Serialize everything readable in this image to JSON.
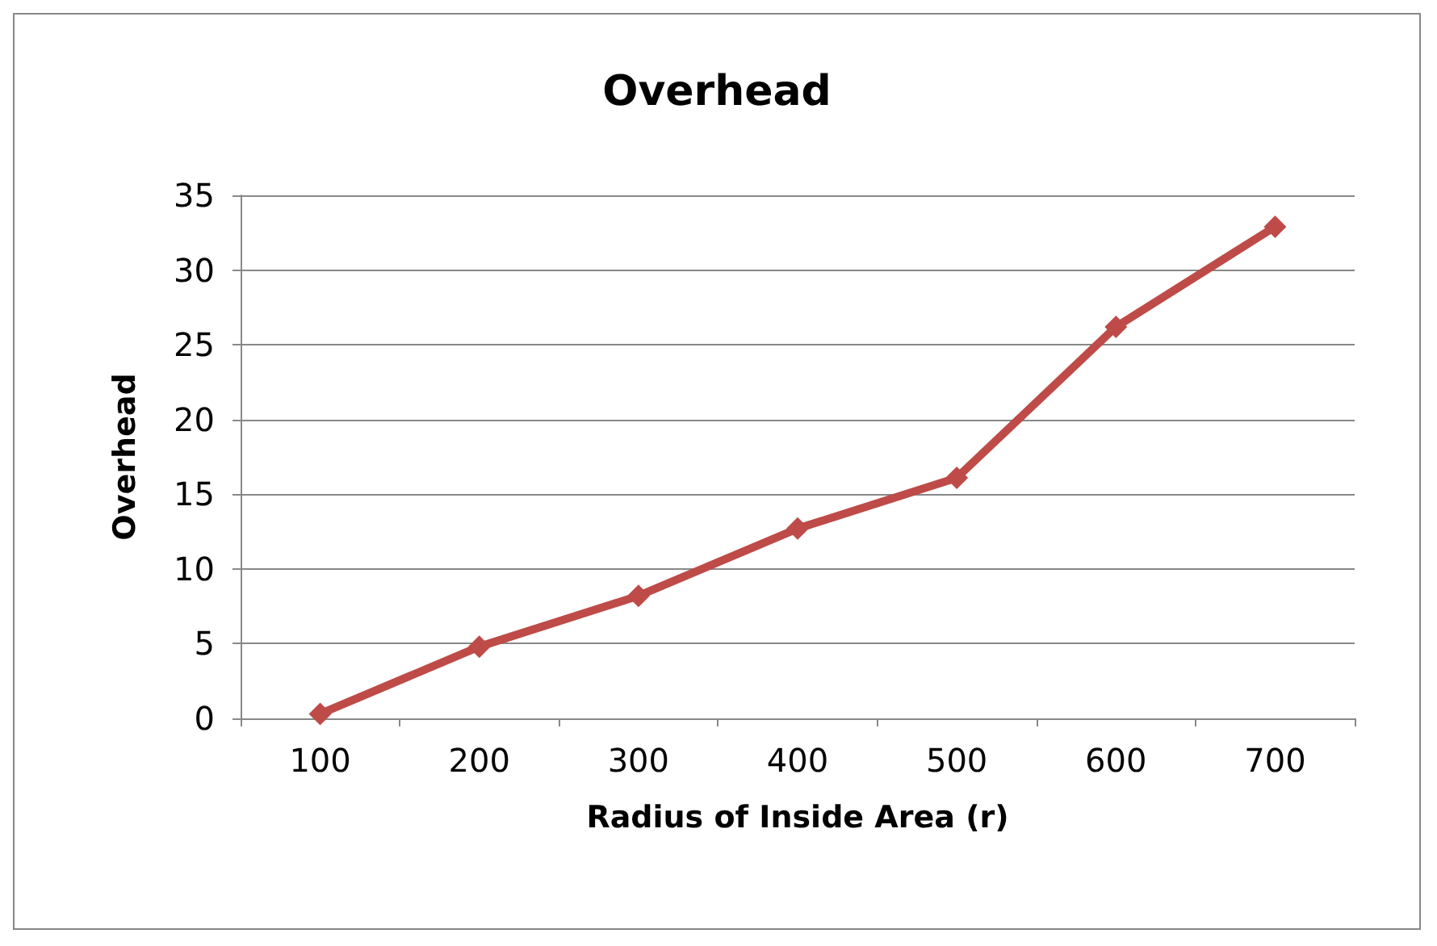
{
  "chart_data": {
    "type": "line",
    "title": "Overhead",
    "xlabel": "Radius of Inside Area (r)",
    "ylabel": "Overhead",
    "categories": [
      "100",
      "200",
      "300",
      "400",
      "500",
      "600",
      "700"
    ],
    "series": [
      {
        "color": "#be4b48",
        "values": [
          0.3,
          4.8,
          8.2,
          12.7,
          16.1,
          26.2,
          32.9
        ]
      }
    ],
    "ylim": [
      0,
      35
    ],
    "yticks": [
      0,
      5,
      10,
      15,
      20,
      25,
      30,
      35
    ],
    "grid": "y",
    "marker": "diamond",
    "line_style": "solid"
  }
}
